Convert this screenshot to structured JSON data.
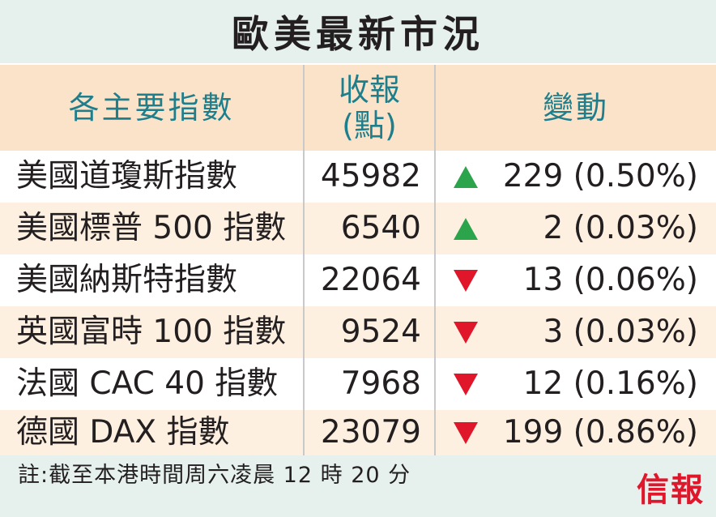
{
  "title": "歐美最新市況",
  "headers": {
    "index": "各主要指數",
    "close_line1": "收報",
    "close_line2": "(點)",
    "change": "變動"
  },
  "rows": [
    {
      "name": "美國道瓊斯指數",
      "close": "45982",
      "direction": "up",
      "change": "229 (0.50%)"
    },
    {
      "name": "美國標普 500 指數",
      "close": "6540",
      "direction": "up",
      "change": "2 (0.03%)"
    },
    {
      "name": "美國納斯特指數",
      "close": "22064",
      "direction": "down",
      "change": "13 (0.06%)"
    },
    {
      "name": "英國富時 100 指數",
      "close": "9524",
      "direction": "down",
      "change": "3 (0.03%)"
    },
    {
      "name": "法國 CAC 40 指數",
      "close": "7968",
      "direction": "down",
      "change": "12 (0.16%)"
    },
    {
      "name": "德國 DAX 指數",
      "close": "23079",
      "direction": "down",
      "change": "199 (0.86%)"
    }
  ],
  "footer_note": "註:截至本港時間周六凌晨 12 時 20 分",
  "logo_text": "信報",
  "colors": {
    "up": "#2ca44b",
    "down": "#e0162b",
    "header_text": "#1f7e8c",
    "header_bg": "#fbe3ca",
    "title_bg": "#e6f1ee"
  }
}
